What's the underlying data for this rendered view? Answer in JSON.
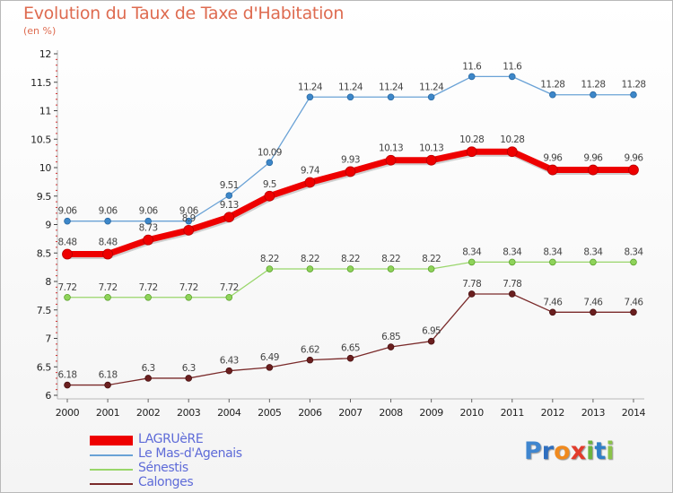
{
  "chart_data": {
    "type": "line",
    "title": "Evolution du Taux de Taxe d'Habitation",
    "subtitle": "(en %)",
    "x": [
      "2000",
      "2001",
      "2002",
      "2003",
      "2004",
      "2005",
      "2006",
      "2007",
      "2008",
      "2009",
      "2010",
      "2011",
      "2012",
      "2013",
      "2014"
    ],
    "yticks": [
      "6",
      "6.5",
      "7",
      "7.5",
      "8",
      "8.5",
      "9",
      "9.5",
      "10",
      "10.5",
      "11",
      "11.5",
      "12"
    ],
    "ylim": [
      6,
      12
    ],
    "grid": false,
    "legend_position": "bottom-left",
    "series": [
      {
        "name": "LAGRUèRE",
        "color": "#ee0000",
        "values": [
          8.48,
          8.48,
          8.73,
          8.9,
          9.13,
          9.5,
          9.74,
          9.93,
          10.13,
          10.13,
          10.28,
          10.28,
          9.96,
          9.96,
          9.96
        ],
        "labels": [
          "8.48",
          "8.48",
          "8.73",
          "8.9",
          "9.13",
          "9.5",
          "9.74",
          "9.93",
          "10.13",
          "10.13",
          "10.28",
          "10.28",
          "9.96",
          "9.96",
          "9.96"
        ]
      },
      {
        "name": "Le Mas-d'Agenais",
        "color": "#6aa2d6",
        "values": [
          9.06,
          9.06,
          9.06,
          9.06,
          9.51,
          10.09,
          11.24,
          11.24,
          11.24,
          11.24,
          11.6,
          11.6,
          11.28,
          11.28,
          11.28
        ],
        "labels": [
          "9.06",
          "9.06",
          "9.06",
          "9.06",
          "9.51",
          "10.09",
          "11.24",
          "11.24",
          "11.24",
          "11.24",
          "11.6",
          "11.6",
          "11.28",
          "11.28",
          "11.28"
        ]
      },
      {
        "name": "Sénestis",
        "color": "#99d66a",
        "values": [
          7.72,
          7.72,
          7.72,
          7.72,
          7.72,
          8.22,
          8.22,
          8.22,
          8.22,
          8.22,
          8.34,
          8.34,
          8.34,
          8.34,
          8.34
        ],
        "labels": [
          "7.72",
          "7.72",
          "7.72",
          "7.72",
          "7.72",
          "8.22",
          "8.22",
          "8.22",
          "8.22",
          "8.22",
          "8.34",
          "8.34",
          "8.34",
          "8.34",
          "8.34"
        ]
      },
      {
        "name": "Calonges",
        "color": "#7a2a2a",
        "values": [
          6.18,
          6.18,
          6.3,
          6.3,
          6.43,
          6.49,
          6.62,
          6.65,
          6.85,
          6.95,
          7.78,
          7.78,
          7.46,
          7.46,
          7.46
        ],
        "labels": [
          "6.18",
          "6.18",
          "6.3",
          "6.3",
          "6.43",
          "6.49",
          "6.62",
          "6.65",
          "6.85",
          "6.95",
          "7.78",
          "7.78",
          "7.46",
          "7.46",
          "7.46"
        ]
      }
    ]
  },
  "logo": {
    "text": "Proxiti",
    "letters": [
      "P",
      "r",
      "o",
      "x",
      "i",
      "t",
      "i"
    ],
    "letter_colors": [
      "#3f86cf",
      "#2f6fbf",
      "#f08a1e",
      "#e23c2c",
      "#6cb33f",
      "#2f7fc8",
      "#8bc34a"
    ]
  }
}
